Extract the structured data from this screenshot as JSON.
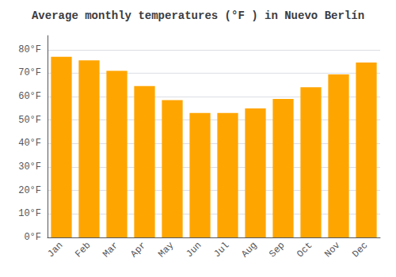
{
  "chart_data": {
    "type": "bar",
    "title": "Average monthly temperatures (°F ) in Nuevo Berlín",
    "categories": [
      "Jan",
      "Feb",
      "Mar",
      "Apr",
      "May",
      "Jun",
      "Jul",
      "Aug",
      "Sep",
      "Oct",
      "Nov",
      "Dec"
    ],
    "values": [
      77,
      75.5,
      71,
      64.5,
      58.5,
      53,
      53,
      55,
      59,
      64,
      69.5,
      74.5
    ],
    "color": "#FFA500",
    "ylim": [
      0,
      86
    ],
    "yticks": [
      {
        "value": 0,
        "label": "0°F"
      },
      {
        "value": 10,
        "label": "10°F"
      },
      {
        "value": 20,
        "label": "20°F"
      },
      {
        "value": 30,
        "label": "30°F"
      },
      {
        "value": 40,
        "label": "40°F"
      },
      {
        "value": 50,
        "label": "50°F"
      },
      {
        "value": 60,
        "label": "60°F"
      },
      {
        "value": 70,
        "label": "70°F"
      },
      {
        "value": 80,
        "label": "80°F"
      }
    ],
    "grid": true
  }
}
